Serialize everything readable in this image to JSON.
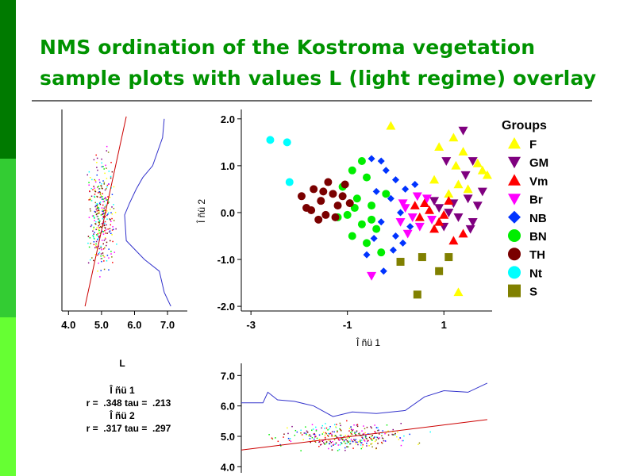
{
  "slide": {
    "title_line1": "NMS ordination of the Kostroma vegetation",
    "title_line2": "sample plots with values L (light regime) overlay",
    "colors": {
      "title": "#009300",
      "stripe_dark": "#007a00",
      "stripe_mid": "#33cc33",
      "stripe_light": "#66ff33"
    }
  },
  "chart_data": [
    {
      "type": "scatter",
      "name_visible": "",
      "xlabel": "Î ñü 1",
      "ylabel": "Î ñü 2",
      "xticks": [
        "-3",
        "-1",
        "1"
      ],
      "xtick_values": [
        -3,
        -1,
        1
      ],
      "yticks": [
        "2.0",
        "1.0",
        "0.0",
        "-1.0",
        "-2.0"
      ],
      "ytick_values": [
        2.0,
        1.0,
        0.0,
        -1.0,
        -2.0
      ],
      "xlim": [
        -3.2,
        2.0
      ],
      "ylim": [
        -2.1,
        2.2
      ],
      "legend_title": "Groups",
      "legend_position": "right",
      "series": [
        {
          "name": "F",
          "color": "#ffff00",
          "marker": "triangle-up",
          "points": [
            [
              -0.1,
              1.85
            ],
            [
              0.9,
              1.4
            ],
            [
              1.2,
              1.6
            ],
            [
              1.4,
              1.3
            ],
            [
              1.7,
              1.05
            ],
            [
              1.8,
              0.9
            ],
            [
              1.3,
              0.6
            ],
            [
              1.1,
              0.4
            ],
            [
              0.8,
              0.7
            ],
            [
              1.9,
              0.8
            ],
            [
              1.5,
              0.5
            ],
            [
              1.3,
              -1.7
            ],
            [
              1.25,
              1.0
            ]
          ]
        },
        {
          "name": "GM",
          "color": "#7f007f",
          "marker": "triangle-down",
          "points": [
            [
              1.4,
              1.75
            ],
            [
              1.6,
              1.1
            ],
            [
              1.8,
              0.45
            ],
            [
              1.5,
              0.3
            ],
            [
              1.2,
              0.2
            ],
            [
              1.1,
              0.0
            ],
            [
              1.3,
              -0.1
            ],
            [
              1.6,
              -0.2
            ],
            [
              1.0,
              -0.3
            ],
            [
              0.9,
              0.1
            ],
            [
              1.7,
              0.15
            ],
            [
              1.45,
              0.8
            ],
            [
              1.05,
              1.1
            ],
            [
              0.8,
              0.25
            ],
            [
              1.55,
              -0.35
            ]
          ]
        },
        {
          "name": "Vm",
          "color": "#ff0000",
          "marker": "triangle-up",
          "points": [
            [
              0.5,
              -0.1
            ],
            [
              0.7,
              0.05
            ],
            [
              0.9,
              -0.2
            ],
            [
              1.2,
              -0.6
            ],
            [
              1.4,
              -0.45
            ],
            [
              0.6,
              0.2
            ],
            [
              0.8,
              -0.35
            ],
            [
              1.0,
              -0.05
            ],
            [
              0.4,
              0.15
            ],
            [
              1.1,
              0.25
            ]
          ]
        },
        {
          "name": "Br",
          "color": "#ff00ff",
          "marker": "triangle-down",
          "points": [
            [
              -0.5,
              -1.35
            ],
            [
              0.2,
              0.1
            ],
            [
              0.35,
              -0.1
            ],
            [
              0.5,
              -0.3
            ],
            [
              0.65,
              0.3
            ],
            [
              0.1,
              -0.2
            ],
            [
              0.45,
              0.35
            ],
            [
              0.25,
              -0.45
            ],
            [
              0.75,
              -0.15
            ],
            [
              0.15,
              0.2
            ]
          ]
        },
        {
          "name": "NB",
          "color": "#0033ff",
          "marker": "diamond",
          "points": [
            [
              -0.5,
              1.15
            ],
            [
              -0.3,
              1.1
            ],
            [
              -0.2,
              0.9
            ],
            [
              0.0,
              0.7
            ],
            [
              0.2,
              0.5
            ],
            [
              -0.4,
              0.45
            ],
            [
              -0.1,
              0.3
            ],
            [
              0.1,
              0.0
            ],
            [
              -0.3,
              -0.2
            ],
            [
              0.0,
              -0.5
            ],
            [
              -0.6,
              -0.9
            ],
            [
              -0.25,
              -1.25
            ],
            [
              0.3,
              -0.3
            ],
            [
              0.4,
              0.6
            ],
            [
              -0.05,
              -0.8
            ],
            [
              0.15,
              -0.65
            ],
            [
              -0.45,
              -0.55
            ]
          ]
        },
        {
          "name": "BN",
          "color": "#00ee00",
          "marker": "circle",
          "points": [
            [
              -0.7,
              1.1
            ],
            [
              -0.9,
              0.9
            ],
            [
              -0.6,
              0.75
            ],
            [
              -1.1,
              0.55
            ],
            [
              -0.8,
              0.3
            ],
            [
              -0.5,
              0.15
            ],
            [
              -1.0,
              -0.05
            ],
            [
              -0.7,
              -0.25
            ],
            [
              -0.4,
              -0.35
            ],
            [
              -0.9,
              -0.5
            ],
            [
              -0.6,
              -0.65
            ],
            [
              -0.3,
              -0.85
            ],
            [
              -1.2,
              -0.1
            ],
            [
              -0.2,
              0.4
            ],
            [
              -0.5,
              -0.15
            ],
            [
              -0.85,
              0.1
            ]
          ]
        },
        {
          "name": "TH",
          "color": "#7a0000",
          "marker": "circle",
          "points": [
            [
              -1.95,
              0.35
            ],
            [
              -1.85,
              0.1
            ],
            [
              -1.7,
              0.5
            ],
            [
              -1.55,
              0.25
            ],
            [
              -1.45,
              -0.05
            ],
            [
              -1.3,
              0.4
            ],
            [
              -1.2,
              0.15
            ],
            [
              -1.05,
              0.6
            ],
            [
              -1.6,
              -0.15
            ],
            [
              -1.75,
              0.05
            ],
            [
              -1.4,
              0.65
            ],
            [
              -1.1,
              0.35
            ],
            [
              -0.95,
              0.2
            ],
            [
              -1.25,
              -0.1
            ],
            [
              -1.5,
              0.45
            ]
          ]
        },
        {
          "name": "Nt",
          "color": "#00ffff",
          "marker": "circle",
          "points": [
            [
              -2.6,
              1.55
            ],
            [
              -2.25,
              1.5
            ],
            [
              -2.2,
              0.65
            ]
          ]
        },
        {
          "name": "S",
          "color": "#808000",
          "marker": "square",
          "points": [
            [
              0.55,
              -0.95
            ],
            [
              1.1,
              -0.95
            ],
            [
              0.9,
              -1.25
            ],
            [
              0.45,
              -1.75
            ],
            [
              0.1,
              -1.05
            ]
          ]
        }
      ]
    },
    {
      "type": "scatter",
      "xticks": [
        "4.0",
        "5.0",
        "6.0",
        "7.0"
      ],
      "xtick_values": [
        4.0,
        5.0,
        6.0,
        7.0
      ],
      "xlim": [
        3.8,
        7.6
      ],
      "ylim": [
        -2.1,
        2.2
      ],
      "series": [
        {
          "name": "",
          "color": "#cc0000",
          "marker": "line",
          "points": [
            [
              4.5,
              -2.0
            ],
            [
              5.75,
              2.05
            ]
          ]
        },
        {
          "name": "",
          "color": "#3333cc",
          "marker": "smooth",
          "points": [
            [
              6.9,
              2.0
            ],
            [
              6.85,
              1.6
            ],
            [
              6.55,
              1.0
            ],
            [
              6.25,
              0.75
            ],
            [
              6.05,
              0.5
            ],
            [
              5.85,
              0.2
            ],
            [
              5.7,
              -0.05
            ],
            [
              5.75,
              -0.6
            ],
            [
              6.3,
              -1.0
            ],
            [
              6.75,
              -1.25
            ],
            [
              6.9,
              -1.7
            ],
            [
              7.1,
              -2.0
            ]
          ]
        }
      ]
    },
    {
      "type": "scatter",
      "yticks": [
        "7.0",
        "6.0",
        "5.0",
        "4.0"
      ],
      "ytick_values": [
        7.0,
        6.0,
        5.0,
        4.0
      ],
      "xlim": [
        -3.2,
        2.0
      ],
      "ylim": [
        3.8,
        7.4
      ],
      "series": [
        {
          "name": "",
          "color": "#cc0000",
          "marker": "line",
          "points": [
            [
              -3.2,
              4.55
            ],
            [
              1.9,
              5.55
            ]
          ]
        },
        {
          "name": "",
          "color": "#3333cc",
          "marker": "smooth",
          "points": [
            [
              -3.2,
              6.1
            ],
            [
              -2.75,
              6.1
            ],
            [
              -2.65,
              6.45
            ],
            [
              -2.45,
              6.2
            ],
            [
              -2.1,
              6.15
            ],
            [
              -1.7,
              6.0
            ],
            [
              -1.3,
              5.65
            ],
            [
              -0.9,
              5.8
            ],
            [
              -0.4,
              5.75
            ],
            [
              0.2,
              5.85
            ],
            [
              0.6,
              6.3
            ],
            [
              1.0,
              6.5
            ],
            [
              1.5,
              6.45
            ],
            [
              1.9,
              6.75
            ]
          ]
        }
      ]
    }
  ],
  "stats": {
    "heading": "L",
    "axis1_label": "Î ñü 1",
    "axis1_values": "r =  .348 tau =  .213",
    "axis2_label": "Î ñü 2",
    "axis2_values": "r =  .317 tau =  .297"
  }
}
